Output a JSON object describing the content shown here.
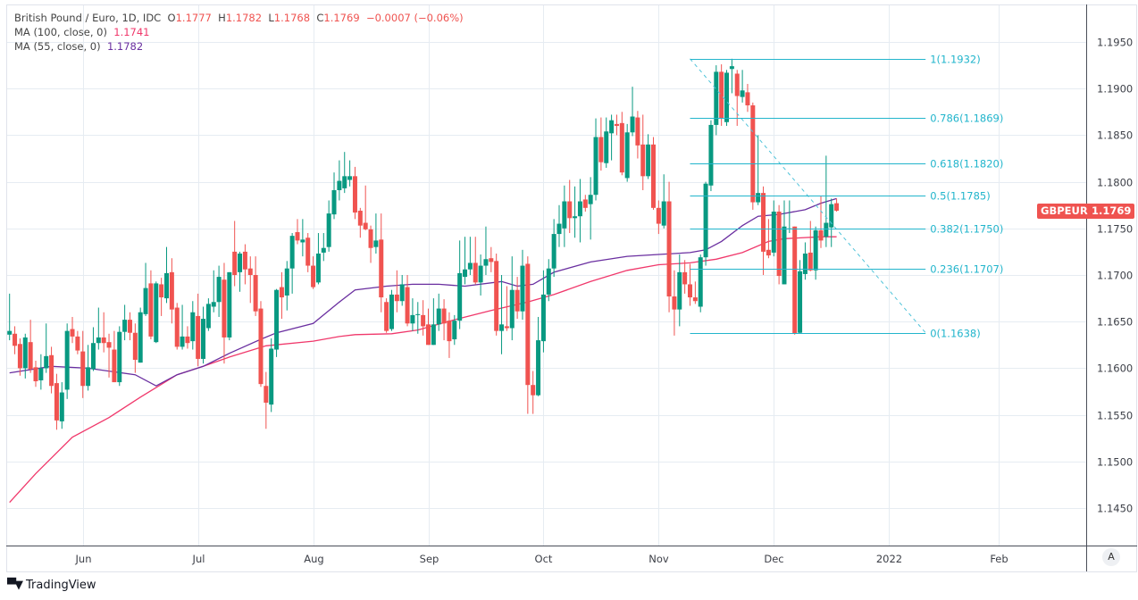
{
  "legend": {
    "title": "British Pound / Euro, 1D, IDC",
    "o_label": "O",
    "o": "1.1777",
    "h_label": "H",
    "h": "1.1782",
    "l_label": "L",
    "l": "1.1768",
    "c_label": "C",
    "c": "1.1769",
    "change": "−0.0007 (−0.06%)",
    "ma100_label": "MA (100, close, 0)",
    "ma100_value": "1.1741",
    "ma55_label": "MA (55, close, 0)",
    "ma55_value": "1.1782"
  },
  "symbol_tag": "GBPEUR",
  "last_price": "1.1769",
  "auto_button": "A",
  "brand": "TradingView",
  "colors": {
    "up": "#089981",
    "down": "#f05350",
    "ma100": "#f0386b",
    "ma55": "#6a2fa0",
    "fib": "#22b5cc",
    "grid": "#e6ecf2"
  },
  "chart_data": {
    "type": "candlestick",
    "ylim": [
      1.142,
      1.198
    ],
    "grid": true,
    "y_ticks": [
      "1.1950",
      "1.1900",
      "1.1850",
      "1.1800",
      "1.1750",
      "1.1700",
      "1.1650",
      "1.1600",
      "1.1550",
      "1.1500",
      "1.1450"
    ],
    "x_ticks": [
      {
        "label": "Jun",
        "bar": 14
      },
      {
        "label": "Jul",
        "bar": 36
      },
      {
        "label": "Aug",
        "bar": 58
      },
      {
        "label": "Sep",
        "bar": 80
      },
      {
        "label": "Oct",
        "bar": 102
      },
      {
        "label": "Nov",
        "bar": 124
      },
      {
        "label": "Dec",
        "bar": 146
      },
      {
        "label": "2022",
        "bar": 168
      },
      {
        "label": "Feb",
        "bar": 189
      }
    ],
    "ohlc": [
      [
        1.1636,
        1.168,
        1.163,
        1.164
      ],
      [
        1.1637,
        1.1645,
        1.1615,
        1.1624
      ],
      [
        1.1626,
        1.1632,
        1.1592,
        1.16
      ],
      [
        1.16,
        1.1637,
        1.1589,
        1.1633
      ],
      [
        1.1628,
        1.1652,
        1.1595,
        1.1599
      ],
      [
        1.1601,
        1.1608,
        1.158,
        1.1586
      ],
      [
        1.1587,
        1.1615,
        1.1577,
        1.16
      ],
      [
        1.16,
        1.1648,
        1.1595,
        1.1613
      ],
      [
        1.1614,
        1.1623,
        1.1573,
        1.1581
      ],
      [
        1.1584,
        1.1594,
        1.1534,
        1.1544
      ],
      [
        1.1543,
        1.1585,
        1.1535,
        1.1574
      ],
      [
        1.1577,
        1.1648,
        1.1567,
        1.164
      ],
      [
        1.1642,
        1.1655,
        1.1627,
        1.1634
      ],
      [
        1.1634,
        1.164,
        1.1615,
        1.1619
      ],
      [
        1.1618,
        1.164,
        1.1568,
        1.1581
      ],
      [
        1.1581,
        1.1625,
        1.1576,
        1.1601
      ],
      [
        1.1599,
        1.1644,
        1.1597,
        1.1627
      ],
      [
        1.1627,
        1.1665,
        1.162,
        1.1633
      ],
      [
        1.1633,
        1.166,
        1.1617,
        1.1627
      ],
      [
        1.1628,
        1.1637,
        1.159,
        1.1622
      ],
      [
        1.162,
        1.164,
        1.1585,
        1.1585
      ],
      [
        1.1585,
        1.1645,
        1.1581,
        1.1639
      ],
      [
        1.1639,
        1.1668,
        1.163,
        1.1652
      ],
      [
        1.1652,
        1.166,
        1.163,
        1.1638
      ],
      [
        1.1638,
        1.1648,
        1.1595,
        1.1609
      ],
      [
        1.1606,
        1.1665,
        1.1606,
        1.166
      ],
      [
        1.1658,
        1.1713,
        1.1656,
        1.1686
      ],
      [
        1.1691,
        1.1705,
        1.1631,
        1.1634
      ],
      [
        1.1628,
        1.1693,
        1.1627,
        1.1691
      ],
      [
        1.169,
        1.1697,
        1.1656,
        1.1676
      ],
      [
        1.1675,
        1.173,
        1.167,
        1.1702
      ],
      [
        1.1703,
        1.1718,
        1.1648,
        1.1663
      ],
      [
        1.1665,
        1.167,
        1.162,
        1.1623
      ],
      [
        1.1623,
        1.1668,
        1.162,
        1.1634
      ],
      [
        1.1634,
        1.1645,
        1.1621,
        1.1627
      ],
      [
        1.1629,
        1.1672,
        1.162,
        1.166
      ],
      [
        1.1656,
        1.168,
        1.1602,
        1.161
      ],
      [
        1.161,
        1.1666,
        1.1605,
        1.1653
      ],
      [
        1.1643,
        1.1675,
        1.164,
        1.1669
      ],
      [
        1.1666,
        1.1705,
        1.166,
        1.1671
      ],
      [
        1.1671,
        1.171,
        1.1655,
        1.1698
      ],
      [
        1.1695,
        1.1713,
        1.1605,
        1.1633
      ],
      [
        1.1633,
        1.1703,
        1.163,
        1.1703
      ],
      [
        1.1725,
        1.1758,
        1.1688,
        1.17
      ],
      [
        1.1703,
        1.1725,
        1.1682,
        1.1723
      ],
      [
        1.1725,
        1.1733,
        1.169,
        1.1706
      ],
      [
        1.1707,
        1.172,
        1.167,
        1.17
      ],
      [
        1.17,
        1.172,
        1.1656,
        1.1661
      ],
      [
        1.1664,
        1.1672,
        1.158,
        1.1583
      ],
      [
        1.1581,
        1.1596,
        1.1535,
        1.1563
      ],
      [
        1.1561,
        1.1632,
        1.1553,
        1.1621
      ],
      [
        1.162,
        1.1685,
        1.1612,
        1.1684
      ],
      [
        1.1687,
        1.1703,
        1.1653,
        1.1676
      ],
      [
        1.1678,
        1.1715,
        1.1662,
        1.1707
      ],
      [
        1.1707,
        1.1745,
        1.168,
        1.1742
      ],
      [
        1.1746,
        1.176,
        1.1733,
        1.1737
      ],
      [
        1.1735,
        1.176,
        1.172,
        1.1738
      ],
      [
        1.174,
        1.1745,
        1.1703,
        1.171
      ],
      [
        1.171,
        1.172,
        1.1685,
        1.1687
      ],
      [
        1.1692,
        1.1745,
        1.169,
        1.1723
      ],
      [
        1.1724,
        1.1745,
        1.1715,
        1.1729
      ],
      [
        1.173,
        1.178,
        1.1725,
        1.1766
      ],
      [
        1.1765,
        1.181,
        1.176,
        1.1791
      ],
      [
        1.1791,
        1.1823,
        1.178,
        1.1801
      ],
      [
        1.1793,
        1.1832,
        1.1788,
        1.1806
      ],
      [
        1.1802,
        1.1823,
        1.1795,
        1.1806
      ],
      [
        1.1806,
        1.1816,
        1.176,
        1.1767
      ],
      [
        1.1769,
        1.1772,
        1.174,
        1.1753
      ],
      [
        1.1756,
        1.1796,
        1.1748,
        1.1749
      ],
      [
        1.1749,
        1.1753,
        1.1713,
        1.1729
      ],
      [
        1.173,
        1.1766,
        1.1723,
        1.1737
      ],
      [
        1.1738,
        1.1766,
        1.166,
        1.1676
      ],
      [
        1.1671,
        1.1675,
        1.1638,
        1.164
      ],
      [
        1.1642,
        1.1684,
        1.164,
        1.1679
      ],
      [
        1.1679,
        1.1705,
        1.166,
        1.1672
      ],
      [
        1.1672,
        1.17,
        1.1667,
        1.169
      ],
      [
        1.1687,
        1.17,
        1.1645,
        1.1648
      ],
      [
        1.1648,
        1.1675,
        1.164,
        1.1657
      ],
      [
        1.1657,
        1.1671,
        1.1637,
        1.1658
      ],
      [
        1.1657,
        1.1673,
        1.1635,
        1.1645
      ],
      [
        1.1647,
        1.1664,
        1.1625,
        1.1625
      ],
      [
        1.1625,
        1.1675,
        1.1625,
        1.1647
      ],
      [
        1.1647,
        1.168,
        1.164,
        1.1664
      ],
      [
        1.1664,
        1.1674,
        1.163,
        1.1648
      ],
      [
        1.1651,
        1.166,
        1.1611,
        1.1629
      ],
      [
        1.1631,
        1.1657,
        1.1625,
        1.1651
      ],
      [
        1.1651,
        1.1737,
        1.1642,
        1.1702
      ],
      [
        1.1698,
        1.1741,
        1.169,
        1.1706
      ],
      [
        1.1706,
        1.1741,
        1.17,
        1.1713
      ],
      [
        1.1713,
        1.1741,
        1.169,
        1.1692
      ],
      [
        1.1692,
        1.1722,
        1.1678,
        1.171
      ],
      [
        1.171,
        1.1752,
        1.17,
        1.1717
      ],
      [
        1.1718,
        1.173,
        1.1703,
        1.1714
      ],
      [
        1.1715,
        1.1723,
        1.1635,
        1.164
      ],
      [
        1.164,
        1.17,
        1.1615,
        1.1647
      ],
      [
        1.1645,
        1.1688,
        1.164,
        1.1643
      ],
      [
        1.1643,
        1.172,
        1.163,
        1.1684
      ],
      [
        1.1684,
        1.1698,
        1.1653,
        1.1661
      ],
      [
        1.1661,
        1.1727,
        1.1652,
        1.171
      ],
      [
        1.1712,
        1.172,
        1.1551,
        1.1582
      ],
      [
        1.1582,
        1.1597,
        1.1551,
        1.1571
      ],
      [
        1.1571,
        1.1655,
        1.157,
        1.163
      ],
      [
        1.1629,
        1.1705,
        1.1617,
        1.1679
      ],
      [
        1.1679,
        1.1717,
        1.1672,
        1.1707
      ],
      [
        1.1707,
        1.176,
        1.1698,
        1.1744
      ],
      [
        1.1744,
        1.1775,
        1.173,
        1.1755
      ],
      [
        1.175,
        1.1796,
        1.173,
        1.1779
      ],
      [
        1.1779,
        1.1802,
        1.1745,
        1.1761
      ],
      [
        1.1761,
        1.1795,
        1.174,
        1.1763
      ],
      [
        1.1763,
        1.1803,
        1.1735,
        1.1779
      ],
      [
        1.1781,
        1.1786,
        1.1768,
        1.1772
      ],
      [
        1.1776,
        1.1805,
        1.1738,
        1.1786
      ],
      [
        1.1786,
        1.1868,
        1.178,
        1.1848
      ],
      [
        1.1848,
        1.1869,
        1.1812,
        1.1821
      ],
      [
        1.182,
        1.1869,
        1.1815,
        1.1854
      ],
      [
        1.1852,
        1.1872,
        1.1823,
        1.1866
      ],
      [
        1.1862,
        1.1872,
        1.185,
        1.186
      ],
      [
        1.1863,
        1.1875,
        1.1807,
        1.181
      ],
      [
        1.1804,
        1.1862,
        1.18,
        1.1853
      ],
      [
        1.1853,
        1.1902,
        1.1849,
        1.187
      ],
      [
        1.1869,
        1.1876,
        1.1825,
        1.1839
      ],
      [
        1.184,
        1.1872,
        1.1791,
        1.1806
      ],
      [
        1.1806,
        1.1851,
        1.1803,
        1.184
      ],
      [
        1.184,
        1.1848,
        1.177,
        1.1772
      ],
      [
        1.1772,
        1.178,
        1.1744,
        1.1755
      ],
      [
        1.1753,
        1.1808,
        1.175,
        1.1779
      ],
      [
        1.1779,
        1.18,
        1.166,
        1.1677
      ],
      [
        1.1677,
        1.1705,
        1.1635,
        1.1663
      ],
      [
        1.1663,
        1.1722,
        1.1645,
        1.1703
      ],
      [
        1.1703,
        1.1716,
        1.168,
        1.169
      ],
      [
        1.169,
        1.1712,
        1.1667,
        1.1676
      ],
      [
        1.1676,
        1.1693,
        1.1669,
        1.1672
      ],
      [
        1.1666,
        1.1722,
        1.166,
        1.1719
      ],
      [
        1.1719,
        1.18,
        1.171,
        1.1798
      ],
      [
        1.1796,
        1.1866,
        1.179,
        1.1861
      ],
      [
        1.1861,
        1.1925,
        1.185,
        1.1918
      ],
      [
        1.1918,
        1.1926,
        1.186,
        1.1868
      ],
      [
        1.1864,
        1.192,
        1.186,
        1.1917
      ],
      [
        1.1921,
        1.1932,
        1.1895,
        1.1924
      ],
      [
        1.1916,
        1.192,
        1.186,
        1.1892
      ],
      [
        1.1891,
        1.192,
        1.1885,
        1.1898
      ],
      [
        1.1896,
        1.1905,
        1.1875,
        1.1882
      ],
      [
        1.1882,
        1.1885,
        1.177,
        1.1778
      ],
      [
        1.1778,
        1.185,
        1.1775,
        1.1788
      ],
      [
        1.1788,
        1.1795,
        1.17,
        1.1725
      ],
      [
        1.1727,
        1.176,
        1.1718,
        1.1721
      ],
      [
        1.1724,
        1.178,
        1.172,
        1.1768
      ],
      [
        1.1768,
        1.1775,
        1.169,
        1.1699
      ],
      [
        1.169,
        1.178,
        1.169,
        1.1752
      ],
      [
        1.1749,
        1.178,
        1.1745,
        1.175
      ],
      [
        1.1752,
        1.1752,
        1.1636,
        1.1637
      ],
      [
        1.1638,
        1.1716,
        1.1637,
        1.1704
      ],
      [
        1.1701,
        1.1735,
        1.1695,
        1.1723
      ],
      [
        1.1724,
        1.1758,
        1.1704,
        1.1705
      ],
      [
        1.1705,
        1.1752,
        1.1695,
        1.1748
      ],
      [
        1.1748,
        1.1785,
        1.1729,
        1.1737
      ],
      [
        1.1741,
        1.1828,
        1.173,
        1.1756
      ],
      [
        1.1751,
        1.1782,
        1.173,
        1.1776
      ],
      [
        1.1777,
        1.1782,
        1.1768,
        1.1769
      ]
    ],
    "ma55": [
      [
        0,
        1.1595
      ],
      [
        8,
        1.1602
      ],
      [
        15,
        1.16
      ],
      [
        24,
        1.1593
      ],
      [
        28,
        1.1581
      ],
      [
        32,
        1.1593
      ],
      [
        37,
        1.1602
      ],
      [
        42,
        1.1616
      ],
      [
        48,
        1.1631
      ],
      [
        51,
        1.1638
      ],
      [
        58,
        1.1648
      ],
      [
        63,
        1.1671
      ],
      [
        66,
        1.1684
      ],
      [
        72,
        1.1688
      ],
      [
        77,
        1.169
      ],
      [
        82,
        1.169
      ],
      [
        87,
        1.1688
      ],
      [
        94,
        1.1693
      ],
      [
        97,
        1.1688
      ],
      [
        100,
        1.169
      ],
      [
        104,
        1.1703
      ],
      [
        111,
        1.1714
      ],
      [
        118,
        1.172
      ],
      [
        124,
        1.1722
      ],
      [
        130,
        1.1724
      ],
      [
        133,
        1.1727
      ],
      [
        136,
        1.1736
      ],
      [
        140,
        1.1753
      ],
      [
        143,
        1.1763
      ],
      [
        147,
        1.1765
      ],
      [
        152,
        1.177
      ],
      [
        155,
        1.1777
      ],
      [
        158,
        1.1782
      ]
    ],
    "ma100": [
      [
        0,
        1.1456
      ],
      [
        5,
        1.1487
      ],
      [
        12,
        1.1526
      ],
      [
        19,
        1.1547
      ],
      [
        25,
        1.1569
      ],
      [
        32,
        1.1593
      ],
      [
        37,
        1.1602
      ],
      [
        42,
        1.1612
      ],
      [
        49,
        1.1624
      ],
      [
        58,
        1.1629
      ],
      [
        63,
        1.1634
      ],
      [
        66,
        1.1636
      ],
      [
        73,
        1.1637
      ],
      [
        78,
        1.1641
      ],
      [
        85,
        1.1652
      ],
      [
        92,
        1.1662
      ],
      [
        99,
        1.1671
      ],
      [
        104,
        1.1679
      ],
      [
        111,
        1.1693
      ],
      [
        118,
        1.1705
      ],
      [
        124,
        1.1711
      ],
      [
        130,
        1.1713
      ],
      [
        135,
        1.1717
      ],
      [
        140,
        1.1724
      ],
      [
        145,
        1.1736
      ],
      [
        148,
        1.1739
      ],
      [
        155,
        1.1741
      ],
      [
        158,
        1.1741
      ]
    ],
    "fib_retracement": {
      "from": {
        "bar": 130,
        "price": 1.1932
      },
      "to": {
        "bar": 175,
        "price": 1.1638
      },
      "levels": [
        {
          "level": 1,
          "price": 1.1932,
          "label": "1(1.1932)"
        },
        {
          "level": 0.786,
          "price": 1.1869,
          "label": "0.786(1.1869)"
        },
        {
          "level": 0.618,
          "price": 1.182,
          "label": "0.618(1.1820)"
        },
        {
          "level": 0.5,
          "price": 1.1785,
          "label": "0.5(1.1785)"
        },
        {
          "level": 0.382,
          "price": 1.175,
          "label": "0.382(1.1750)"
        },
        {
          "level": 0.236,
          "price": 1.1707,
          "label": "0.236(1.1707)"
        },
        {
          "level": 0,
          "price": 1.1638,
          "label": "0(1.1638)"
        }
      ]
    }
  }
}
